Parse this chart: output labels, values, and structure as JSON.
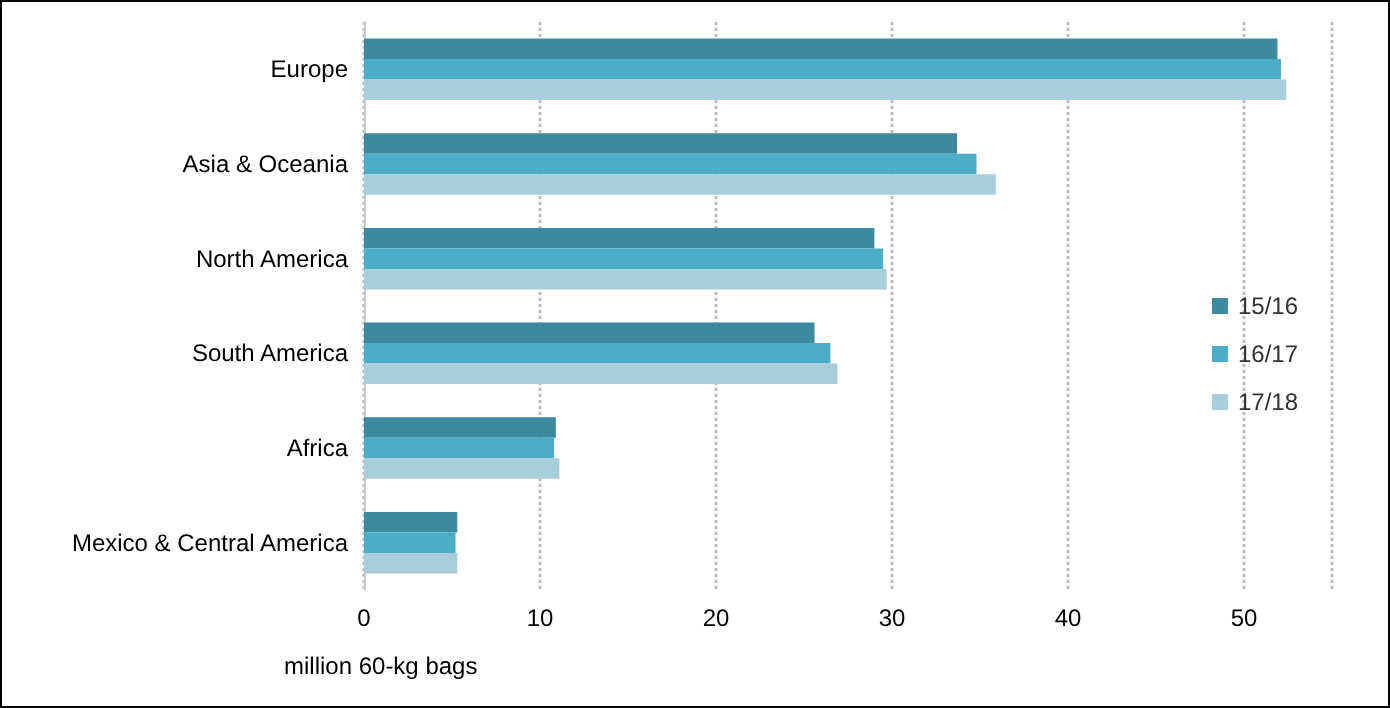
{
  "chart_data": {
    "type": "bar",
    "orientation": "horizontal",
    "xlabel": "million 60-kg bags",
    "categories": [
      "Europe",
      "Asia & Oceania",
      "North America",
      "South America",
      "Africa",
      "Mexico & Central America"
    ],
    "series": [
      {
        "name": "15/16",
        "color": "#3d8aa0",
        "values": [
          51.9,
          33.7,
          29.0,
          25.6,
          10.9,
          5.3
        ]
      },
      {
        "name": "16/17",
        "color": "#4badc8",
        "values": [
          52.1,
          34.8,
          29.5,
          26.5,
          10.8,
          5.2
        ]
      },
      {
        "name": "17/18",
        "color": "#a8cedc",
        "values": [
          52.4,
          35.9,
          29.7,
          26.9,
          11.1,
          5.3
        ]
      }
    ],
    "xlim": [
      0,
      55
    ],
    "xticks": [
      0,
      10,
      20,
      30,
      40,
      50
    ],
    "grid": "x",
    "legend": "right"
  }
}
